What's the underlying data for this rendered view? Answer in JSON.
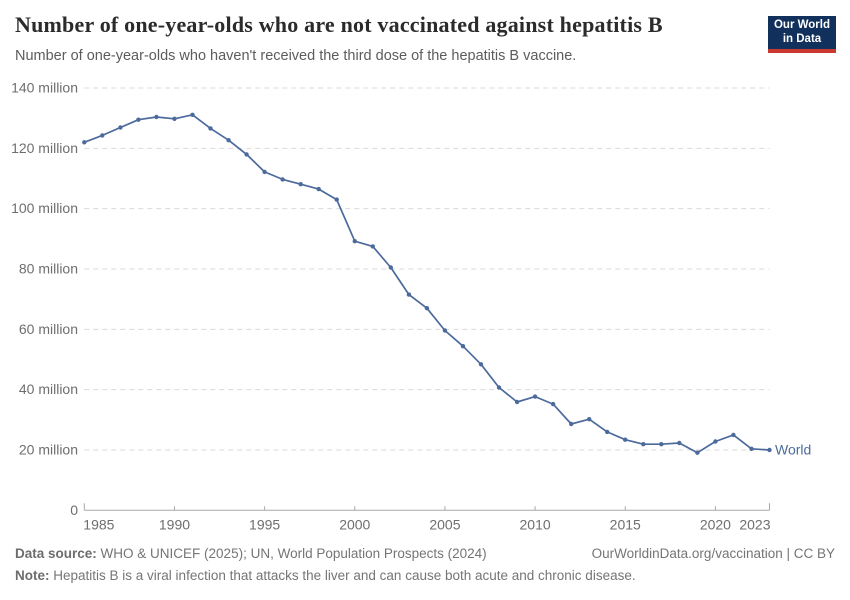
{
  "header": {
    "title": "Number of one-year-olds who are not vaccinated against hepatitis B",
    "subtitle": "Number of one-year-olds who haven't received the third dose of the hepatitis B vaccine.",
    "logo": {
      "line1": "Our World",
      "line2": "in Data"
    }
  },
  "chart_data": {
    "type": "line",
    "title": "Number of one-year-olds who are not vaccinated against hepatitis B",
    "xlabel": "",
    "ylabel": "",
    "unit": "million",
    "ylim": [
      0,
      140
    ],
    "grid": "dashed-horizontal",
    "legend": "end-of-line-label",
    "x": [
      1985,
      1986,
      1987,
      1988,
      1989,
      1990,
      1991,
      1992,
      1993,
      1994,
      1995,
      1996,
      1997,
      1998,
      1999,
      2000,
      2001,
      2002,
      2003,
      2004,
      2005,
      2006,
      2007,
      2008,
      2009,
      2010,
      2011,
      2012,
      2013,
      2014,
      2015,
      2016,
      2017,
      2018,
      2019,
      2020,
      2021,
      2022,
      2023
    ],
    "series": [
      {
        "name": "World",
        "color": "#4C6A9C",
        "values": [
          122.0,
          124.3,
          126.9,
          129.5,
          130.4,
          129.8,
          131.1,
          126.6,
          122.7,
          118.0,
          112.2,
          109.7,
          108.1,
          106.5,
          103.0,
          89.2,
          87.5,
          80.5,
          71.5,
          67.0,
          59.6,
          54.4,
          48.4,
          40.7,
          35.9,
          37.7,
          35.2,
          28.6,
          30.2,
          26.0,
          23.4,
          21.9,
          21.9,
          22.3,
          19.1,
          22.8,
          25.0,
          20.4,
          20.0
        ]
      }
    ],
    "yticks": [
      0,
      20,
      40,
      60,
      80,
      100,
      120,
      140
    ],
    "ytick_label_suffix": " million",
    "xticks": [
      1985,
      1990,
      1995,
      2000,
      2005,
      2010,
      2015,
      2020,
      2023
    ]
  },
  "footer": {
    "source_label": "Data source:",
    "source_text": "WHO & UNICEF (2025); UN, World Population Prospects (2024)",
    "link": "OurWorldinData.org/vaccination | CC BY",
    "note_label": "Note:",
    "note_text": "Hepatitis B is a viral infection that attacks the liver and can cause both acute and chronic disease."
  },
  "colors": {
    "line": "#4C6A9C",
    "grid": "#DADADA",
    "axis": "#A8A8A8",
    "tick_label": "#6E6E6E",
    "logo_navy": "#12305C",
    "logo_red": "#CB3A31"
  }
}
